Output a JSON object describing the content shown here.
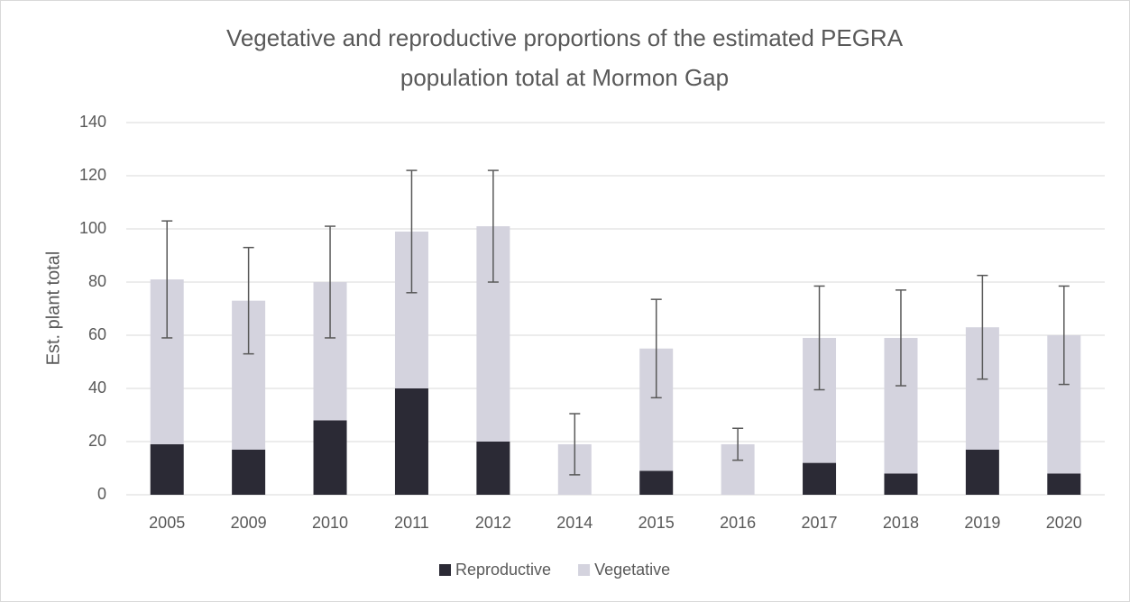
{
  "chart_data": {
    "type": "stacked-bar",
    "title_lines": [
      "Vegetative and reproductive proportions of the estimated PEGRA",
      "population total at Mormon Gap"
    ],
    "y_label": "Est. plant total",
    "categories": [
      "2005",
      "2009",
      "2010",
      "2011",
      "2012",
      "2014",
      "2015",
      "2016",
      "2017",
      "2018",
      "2019",
      "2020"
    ],
    "series": [
      {
        "name": "Reproductive",
        "color": "#2b2a35",
        "values": [
          19,
          17,
          28,
          40,
          20,
          0,
          9,
          0,
          12,
          8,
          17,
          8
        ]
      },
      {
        "name": "Vegetative",
        "color": "#d4d3de",
        "values": [
          62,
          56,
          52,
          59,
          81,
          19,
          46,
          19,
          47,
          51,
          46,
          52
        ],
        "errors": [
          22,
          20,
          21,
          23,
          21,
          11.5,
          18.5,
          6,
          19.5,
          18,
          19.5,
          18.5
        ]
      }
    ],
    "ylim": [
      0,
      140
    ],
    "yticks": [
      0,
      20,
      40,
      60,
      80,
      100,
      120,
      140
    ],
    "grid": true,
    "legend": "bottom"
  }
}
